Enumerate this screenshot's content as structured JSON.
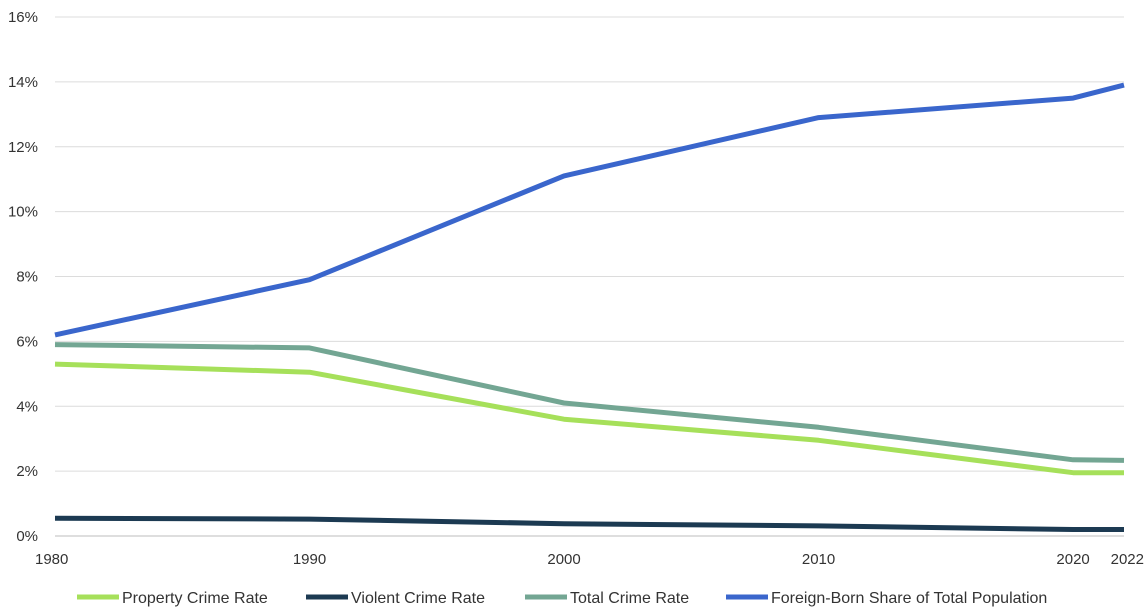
{
  "chart_data": {
    "type": "line",
    "x": [
      "1980",
      "1990",
      "2000",
      "2010",
      "2020",
      "2022"
    ],
    "y_ticks": [
      "0%",
      "2%",
      "4%",
      "6%",
      "8%",
      "10%",
      "12%",
      "14%",
      "16%"
    ],
    "ylim": [
      0,
      16
    ],
    "grid": true,
    "legend_position": "bottom",
    "series": [
      {
        "name": "Property Crime Rate",
        "color": "#a6e05a",
        "values": [
          5.3,
          5.05,
          3.6,
          2.95,
          1.95,
          1.95
        ]
      },
      {
        "name": "Violent Crime Rate",
        "color": "#1c3a52",
        "values": [
          0.55,
          0.52,
          0.38,
          0.31,
          0.2,
          0.2
        ]
      },
      {
        "name": "Total Crime Rate",
        "color": "#73a693",
        "values": [
          5.9,
          5.8,
          4.1,
          3.35,
          2.35,
          2.33
        ]
      },
      {
        "name": "Foreign-Born Share of Total Population",
        "color": "#3a66cc",
        "values": [
          6.2,
          7.9,
          11.1,
          12.9,
          13.5,
          13.9
        ]
      }
    ]
  }
}
